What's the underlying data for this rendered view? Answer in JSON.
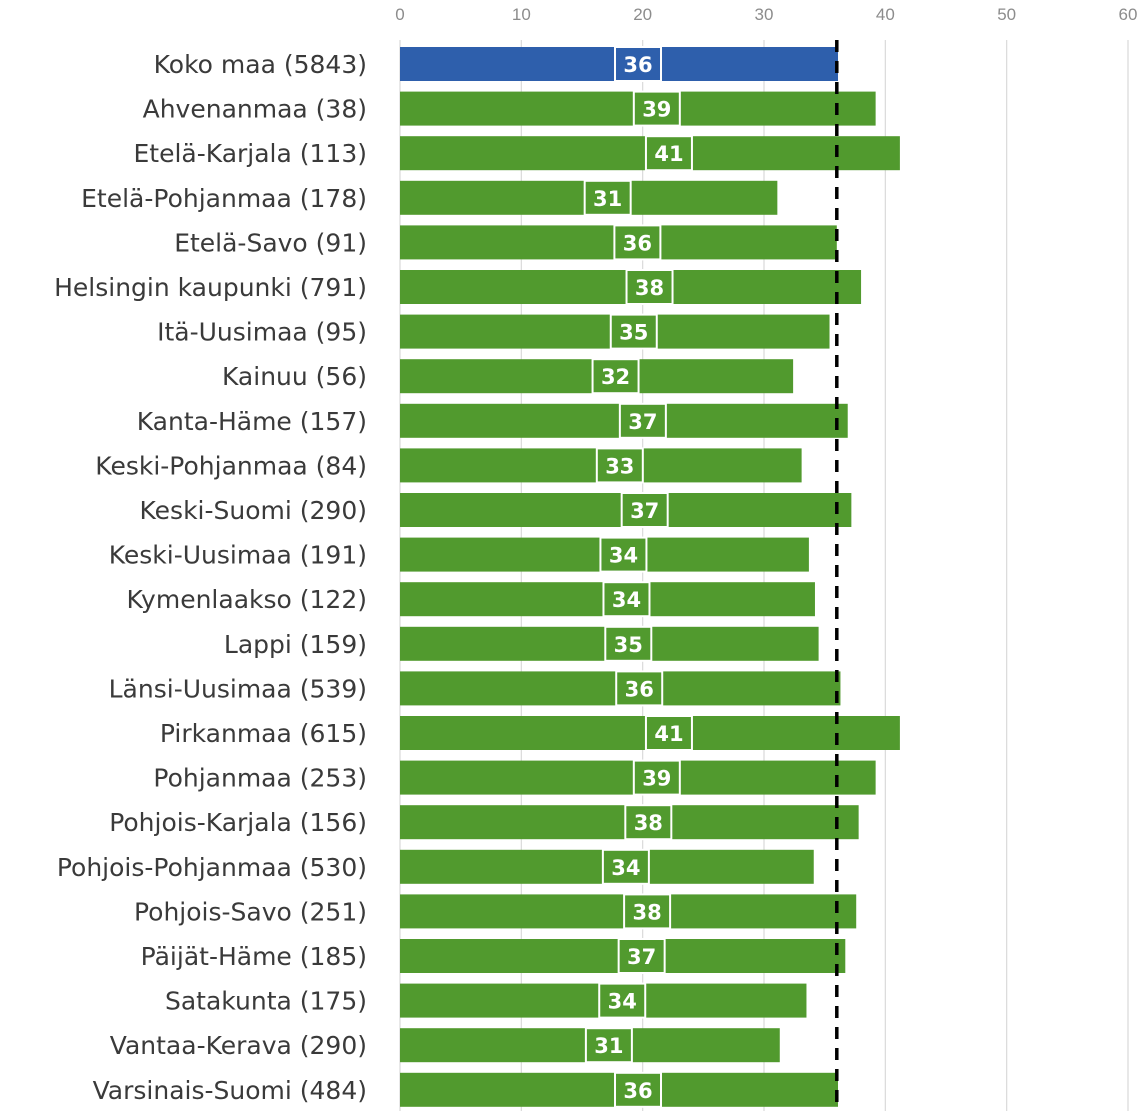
{
  "chart_data": {
    "type": "bar",
    "orientation": "horizontal",
    "title": "",
    "xlabel": "",
    "ylabel": "",
    "xlim": [
      0,
      60
    ],
    "x_ticks": [
      "0",
      "10",
      "20",
      "30",
      "40",
      "50",
      "60"
    ],
    "x_axis_position": "top",
    "grid": true,
    "legend": "none",
    "reference_line": {
      "value": 36,
      "style": "dashed",
      "color": "#000000"
    },
    "colors": {
      "highlight": "#2e5fac",
      "default": "#519a2e",
      "gridline": "#d9d9d9"
    },
    "categories": [
      "Koko maa (5843)",
      "Ahvenanmaa (38)",
      "Etelä-Karjala (113)",
      "Etelä-Pohjanmaa (178)",
      "Etelä-Savo (91)",
      "Helsingin kaupunki (791)",
      "Itä-Uusimaa (95)",
      "Kainuu (56)",
      "Kanta-Häme (157)",
      "Keski-Pohjanmaa (84)",
      "Keski-Suomi (290)",
      "Keski-Uusimaa (191)",
      "Kymenlaakso (122)",
      "Lappi (159)",
      "Länsi-Uusimaa (539)",
      "Pirkanmaa (615)",
      "Pohjanmaa (253)",
      "Pohjois-Karjala (156)",
      "Pohjois-Pohjanmaa (530)",
      "Pohjois-Savo (251)",
      "Päijät-Häme (185)",
      "Satakunta (175)",
      "Vantaa-Kerava (290)",
      "Varsinais-Suomi (484)"
    ],
    "values": [
      36.1,
      39.2,
      41.2,
      31.1,
      36.0,
      38.0,
      35.4,
      32.4,
      36.9,
      33.1,
      37.2,
      33.7,
      34.2,
      34.5,
      36.3,
      41.2,
      39.2,
      37.8,
      34.1,
      37.6,
      36.7,
      33.5,
      31.3,
      36.1
    ],
    "data_labels": [
      "36",
      "39",
      "41",
      "31",
      "36",
      "38",
      "35",
      "32",
      "37",
      "33",
      "37",
      "34",
      "34",
      "35",
      "36",
      "41",
      "39",
      "38",
      "34",
      "38",
      "37",
      "34",
      "31",
      "36"
    ],
    "highlight_index": 0
  }
}
